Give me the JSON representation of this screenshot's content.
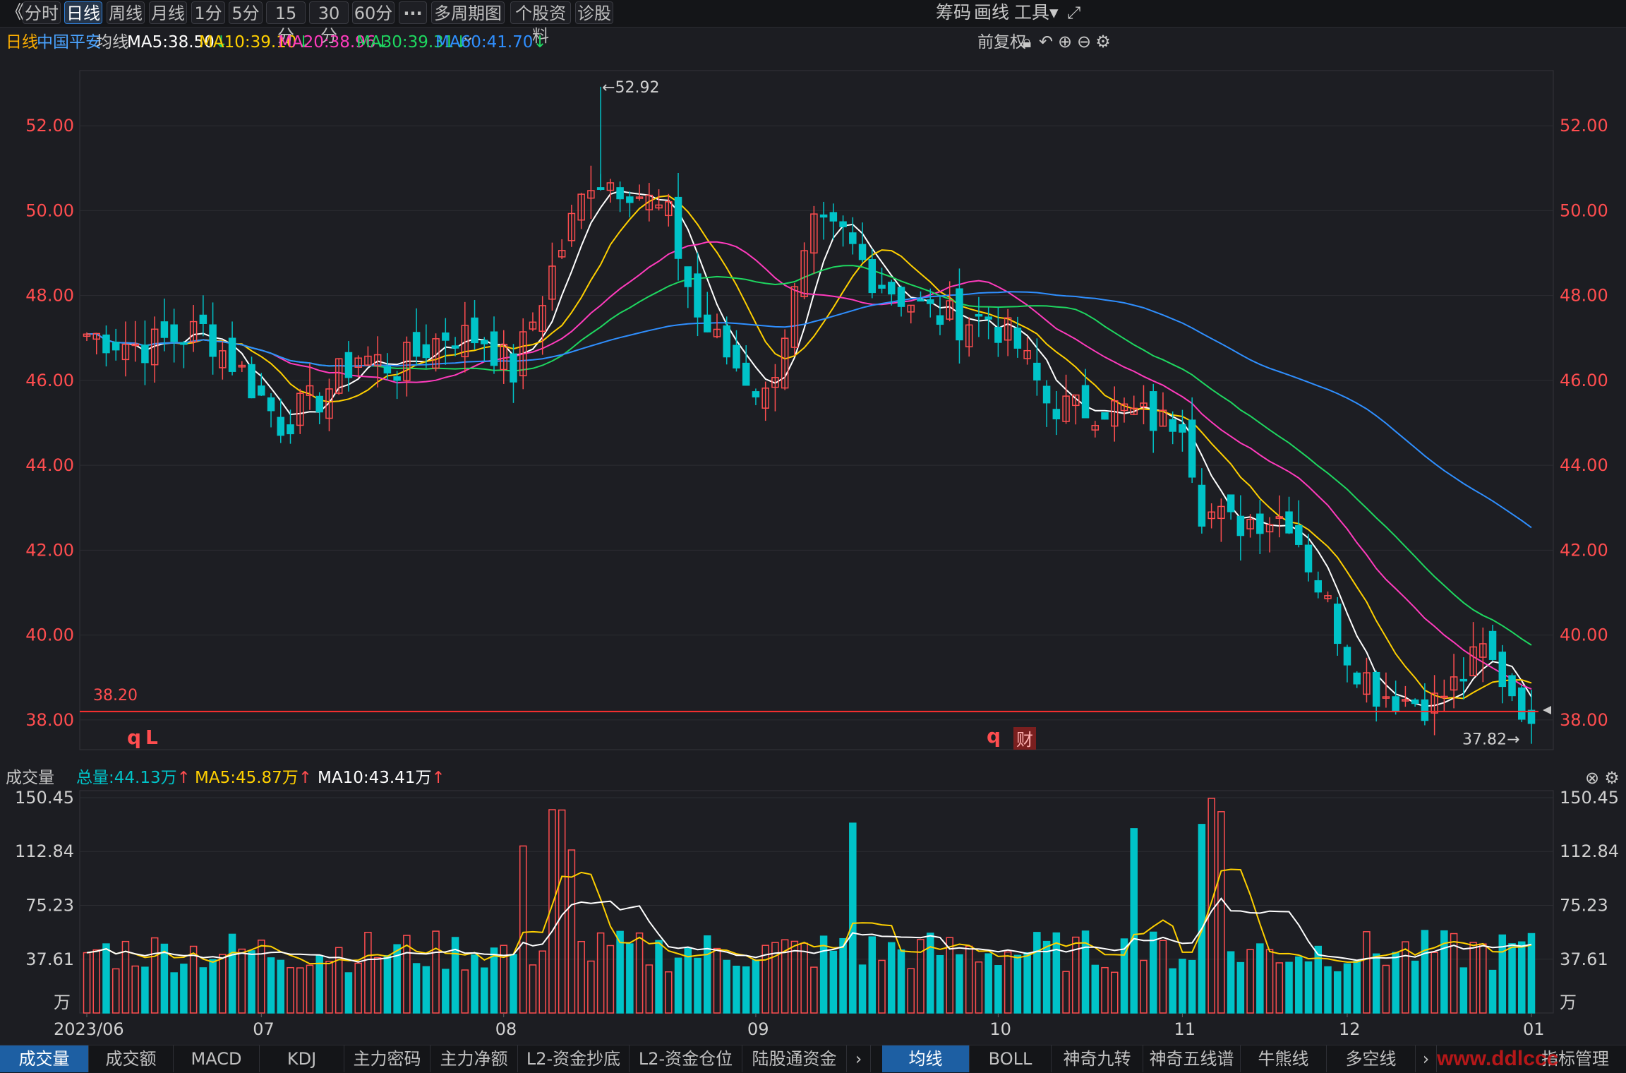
{
  "toolbar": {
    "back": "《",
    "tabs": [
      "分时",
      "日线",
      "周线",
      "月线",
      "1分",
      "5分",
      "15分",
      "30分",
      "60分",
      "···",
      "多周期图 ⌄",
      "个股资料",
      "诊股"
    ],
    "active_tab": "日线",
    "right": [
      "筹码",
      "画线",
      "工具▾"
    ],
    "expand_icon": "expand-icon"
  },
  "info": {
    "period": "日线",
    "stock": "中国平安",
    "ma_label": "均线",
    "ma5": "MA5:38.50",
    "ma10": "MA10:39.10",
    "ma20": "MA20:38.96",
    "ma30": "MA30:39.31",
    "ma60": "MA60:41.70",
    "down_arrow": "↓",
    "adjust": "前复权"
  },
  "colors": {
    "up": "#ff4d4f",
    "down": "#00c3c8",
    "ma5": "#ffffff",
    "ma10": "#ffd000",
    "ma20": "#ff3bbd",
    "ma30": "#1ed760",
    "ma60": "#2f8fff",
    "axis_text": "#ff4d4f"
  },
  "markers": {
    "high_label": "←52.92",
    "low_label": "37.82→",
    "line_label": "38.20",
    "q1": "q",
    "l1": "L",
    "q2": "q",
    "cai": "财"
  },
  "volume_info": {
    "label": "成交量",
    "total": "总量:44.13万",
    "ma5": "MA5:45.87万",
    "ma10": "MA10:43.41万",
    "up_arrow": "↑"
  },
  "bottom_tabs_left": [
    "成交量",
    "成交额",
    "MACD",
    "KDJ",
    "主力密码",
    "主力净额",
    "L2-资金抄底",
    "L2-资金仓位",
    "陆股通资金"
  ],
  "bottom_tabs_right": [
    "均线",
    "BOLL",
    "神奇九转",
    "神奇五线谱",
    "牛熊线",
    "多空线"
  ],
  "bottom_right": "指标管理",
  "watermark": "www.ddlccc",
  "chart_data": {
    "type": "candlestick",
    "price_axis_ticks": [
      "52.00",
      "50.00",
      "48.00",
      "46.00",
      "44.00",
      "42.00",
      "40.00",
      "38.00"
    ],
    "price_ylim": [
      37.3,
      53.3
    ],
    "volume_axis_ticks": [
      "150.45",
      "112.84",
      "75.23",
      "37.61",
      "万"
    ],
    "volume_ylim": [
      0,
      150.45
    ],
    "x_labels": [
      "2023/06",
      "07",
      "08",
      "09",
      "10",
      "11",
      "12",
      "01"
    ],
    "high": 52.92,
    "low": 37.82,
    "ref_line": 38.2,
    "ma": {
      "MA5": 38.5,
      "MA10": 39.1,
      "MA20": 38.96,
      "MA30": 39.31,
      "MA60": 41.7
    },
    "volume": {
      "total_wan": 44.13,
      "MA5_wan": 45.87,
      "MA10_wan": 43.41
    },
    "grid": true
  }
}
